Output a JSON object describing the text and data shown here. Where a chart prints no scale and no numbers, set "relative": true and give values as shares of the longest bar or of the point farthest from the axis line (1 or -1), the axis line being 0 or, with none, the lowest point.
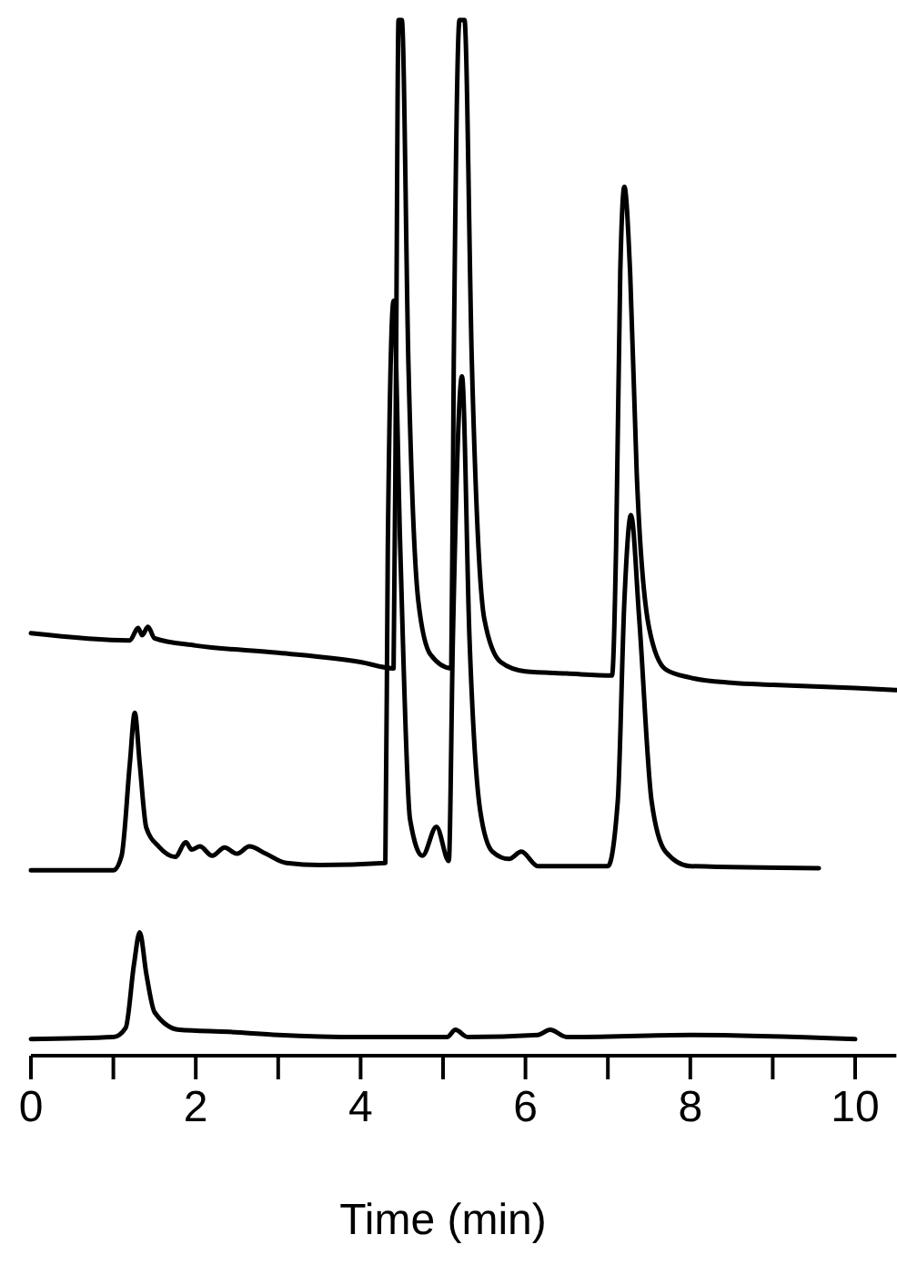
{
  "chart_data": {
    "type": "line",
    "xlabel": "Time (min)",
    "relative": true,
    "xlim": [
      0,
      10.5
    ],
    "xticks": [
      0,
      {
        "value": 1,
        "label": null
      },
      2,
      {
        "value": 3,
        "label": null
      },
      4,
      {
        "value": 5,
        "label": null
      },
      6,
      {
        "value": 7,
        "label": null
      },
      8,
      {
        "value": 9,
        "label": null
      },
      10
    ],
    "tick_labels": "x",
    "marker": "none",
    "line_style": "solid",
    "series": [
      {
        "color": "#000000",
        "x": [
          0,
          1.2,
          1.3,
          1.35,
          1.42,
          1.5,
          2,
          3,
          4,
          4.4,
          4.43,
          4.46,
          4.5,
          4.58,
          4.7,
          4.85,
          5.1,
          5.13,
          5.2,
          5.26,
          5.35,
          5.5,
          5.7,
          6,
          6.5,
          7.05,
          7.1,
          7.15,
          7.2,
          7.27,
          7.35,
          7.5,
          7.7,
          8,
          8.5,
          9,
          10,
          10.5
        ],
        "values": [
          0.408,
          0.401,
          0.413,
          0.406,
          0.414,
          0.403,
          0.396,
          0.389,
          0.38,
          0.374,
          0.668,
          1,
          1,
          0.668,
          0.439,
          0.387,
          0.374,
          0.668,
          1,
          1,
          0.668,
          0.422,
          0.38,
          0.371,
          0.369,
          0.367,
          0.492,
          0.756,
          0.839,
          0.756,
          0.562,
          0.413,
          0.373,
          0.365,
          0.36,
          0.358,
          0.355,
          0.353
        ]
      },
      {
        "color": "#000000",
        "x": [
          0,
          1.0,
          1.1,
          1.2,
          1.26,
          1.32,
          1.4,
          1.55,
          1.75,
          1.88,
          1.95,
          2.05,
          2.2,
          2.35,
          2.5,
          2.65,
          2.85,
          3.1,
          3.5,
          4.3,
          4.33,
          4.4,
          4.48,
          4.6,
          4.75,
          4.92,
          5.07,
          5.12,
          5.23,
          5.32,
          5.45,
          5.6,
          5.8,
          5.95,
          6.15,
          7.0,
          7.12,
          7.2,
          7.28,
          7.38,
          7.53,
          7.7,
          8.0,
          9.56
        ],
        "values": [
          0.179,
          0.179,
          0.193,
          0.282,
          0.331,
          0.282,
          0.22,
          0.202,
          0.192,
          0.206,
          0.199,
          0.202,
          0.193,
          0.201,
          0.195,
          0.202,
          0.195,
          0.186,
          0.184,
          0.186,
          0.492,
          0.729,
          0.492,
          0.228,
          0.193,
          0.221,
          0.188,
          0.405,
          0.656,
          0.405,
          0.237,
          0.197,
          0.19,
          0.197,
          0.183,
          0.183,
          0.246,
          0.439,
          0.522,
          0.422,
          0.246,
          0.197,
          0.183,
          0.181
        ]
      },
      {
        "color": "#000000",
        "x": [
          0,
          1.0,
          1.15,
          1.25,
          1.32,
          1.4,
          1.5,
          1.8,
          2.4,
          3,
          4,
          5.05,
          5.15,
          5.3,
          6.15,
          6.3,
          6.5,
          8,
          10
        ],
        "values": [
          0.016,
          0.018,
          0.027,
          0.088,
          0.119,
          0.079,
          0.042,
          0.025,
          0.023,
          0.02,
          0.018,
          0.018,
          0.025,
          0.018,
          0.02,
          0.025,
          0.018,
          0.02,
          0.016
        ]
      }
    ]
  }
}
